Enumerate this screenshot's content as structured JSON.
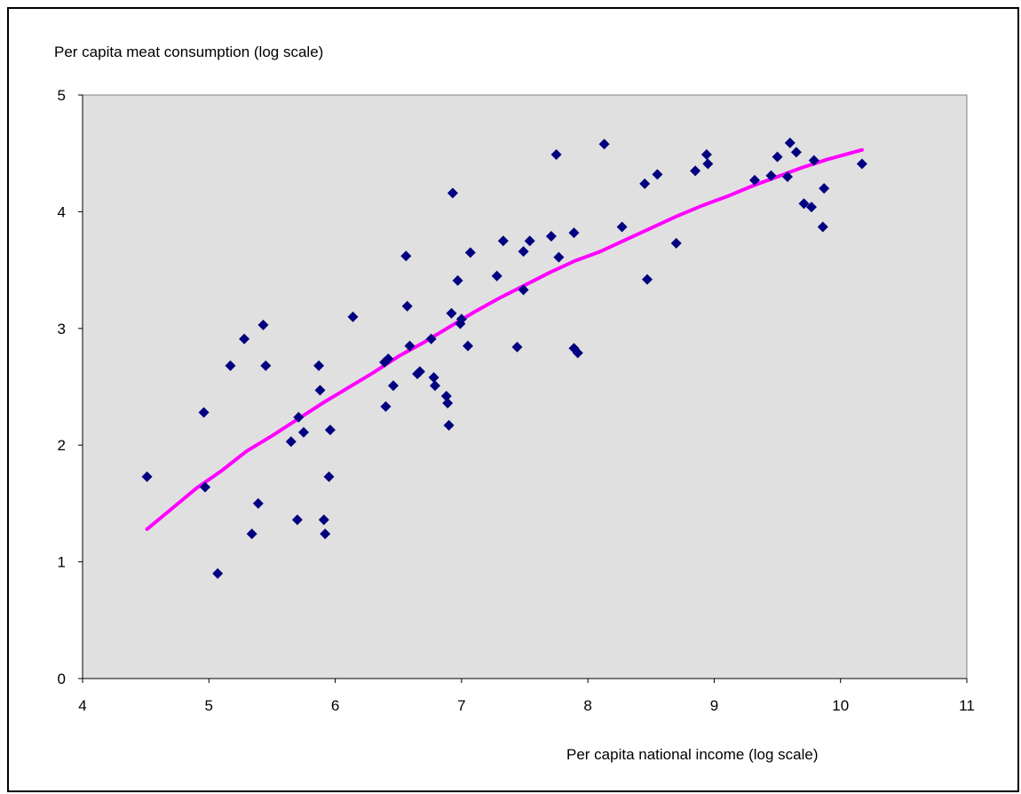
{
  "chart_data": {
    "type": "scatter",
    "title": "",
    "xlabel": "Per capita national income (log scale)",
    "ylabel": "Per capita meat consumption (log scale)",
    "xlim": [
      4,
      11
    ],
    "ylim": [
      0,
      5
    ],
    "xticks": [
      "4",
      "5",
      "6",
      "7",
      "8",
      "9",
      "10",
      "11"
    ],
    "yticks": [
      "0",
      "1",
      "2",
      "3",
      "4",
      "5"
    ],
    "grid": false,
    "legend": "none",
    "plot_background": "#e0e0e0",
    "colors": {
      "points": "#000080",
      "trend_line": "#ff00ff"
    },
    "series": [
      {
        "type": "scatter",
        "marker": "diamond",
        "points": [
          [
            4.51,
            1.73
          ],
          [
            4.96,
            2.28
          ],
          [
            4.97,
            1.64
          ],
          [
            5.07,
            0.9
          ],
          [
            5.17,
            2.68
          ],
          [
            5.28,
            2.91
          ],
          [
            5.34,
            1.24
          ],
          [
            5.39,
            1.5
          ],
          [
            5.43,
            3.03
          ],
          [
            5.45,
            2.68
          ],
          [
            5.65,
            2.03
          ],
          [
            5.7,
            1.36
          ],
          [
            5.71,
            2.24
          ],
          [
            5.75,
            2.11
          ],
          [
            5.87,
            2.68
          ],
          [
            5.88,
            2.47
          ],
          [
            5.91,
            1.36
          ],
          [
            5.92,
            1.24
          ],
          [
            5.95,
            1.73
          ],
          [
            5.96,
            2.13
          ],
          [
            6.14,
            3.1
          ],
          [
            6.39,
            2.71
          ],
          [
            6.4,
            2.33
          ],
          [
            6.42,
            2.74
          ],
          [
            6.46,
            2.51
          ],
          [
            6.56,
            3.62
          ],
          [
            6.57,
            3.19
          ],
          [
            6.59,
            2.85
          ],
          [
            6.65,
            2.61
          ],
          [
            6.67,
            2.63
          ],
          [
            6.76,
            2.91
          ],
          [
            6.78,
            2.58
          ],
          [
            6.79,
            2.51
          ],
          [
            6.88,
            2.42
          ],
          [
            6.89,
            2.36
          ],
          [
            6.9,
            2.17
          ],
          [
            6.92,
            3.13
          ],
          [
            6.93,
            4.16
          ],
          [
            6.97,
            3.41
          ],
          [
            6.99,
            3.04
          ],
          [
            7.0,
            3.08
          ],
          [
            7.05,
            2.85
          ],
          [
            7.07,
            3.65
          ],
          [
            7.28,
            3.45
          ],
          [
            7.33,
            3.75
          ],
          [
            7.44,
            2.84
          ],
          [
            7.49,
            3.33
          ],
          [
            7.49,
            3.66
          ],
          [
            7.54,
            3.75
          ],
          [
            7.71,
            3.79
          ],
          [
            7.75,
            4.49
          ],
          [
            7.77,
            3.61
          ],
          [
            7.89,
            2.83
          ],
          [
            7.89,
            3.82
          ],
          [
            7.92,
            2.79
          ],
          [
            8.13,
            4.58
          ],
          [
            8.27,
            3.87
          ],
          [
            8.45,
            4.24
          ],
          [
            8.47,
            3.42
          ],
          [
            8.55,
            4.32
          ],
          [
            8.7,
            3.73
          ],
          [
            8.85,
            4.35
          ],
          [
            8.94,
            4.49
          ],
          [
            8.95,
            4.41
          ],
          [
            9.32,
            4.27
          ],
          [
            9.45,
            4.31
          ],
          [
            9.5,
            4.47
          ],
          [
            9.58,
            4.3
          ],
          [
            9.6,
            4.59
          ],
          [
            9.65,
            4.51
          ],
          [
            9.71,
            4.07
          ],
          [
            9.77,
            4.04
          ],
          [
            9.79,
            4.44
          ],
          [
            9.86,
            3.87
          ],
          [
            9.87,
            4.2
          ],
          [
            10.17,
            4.41
          ]
        ]
      },
      {
        "type": "line",
        "points": [
          [
            4.51,
            1.28
          ],
          [
            4.7,
            1.45
          ],
          [
            4.9,
            1.63
          ],
          [
            5.1,
            1.78
          ],
          [
            5.3,
            1.95
          ],
          [
            5.5,
            2.08
          ],
          [
            5.7,
            2.22
          ],
          [
            5.9,
            2.36
          ],
          [
            6.1,
            2.49
          ],
          [
            6.3,
            2.62
          ],
          [
            6.5,
            2.76
          ],
          [
            6.7,
            2.88
          ],
          [
            6.9,
            3.01
          ],
          [
            7.1,
            3.14
          ],
          [
            7.3,
            3.26
          ],
          [
            7.5,
            3.37
          ],
          [
            7.7,
            3.48
          ],
          [
            7.9,
            3.58
          ],
          [
            8.1,
            3.66
          ],
          [
            8.3,
            3.76
          ],
          [
            8.5,
            3.86
          ],
          [
            8.7,
            3.96
          ],
          [
            8.9,
            4.05
          ],
          [
            9.1,
            4.13
          ],
          [
            9.3,
            4.22
          ],
          [
            9.5,
            4.3
          ],
          [
            9.7,
            4.38
          ],
          [
            9.9,
            4.45
          ],
          [
            10.17,
            4.53
          ]
        ]
      }
    ]
  }
}
